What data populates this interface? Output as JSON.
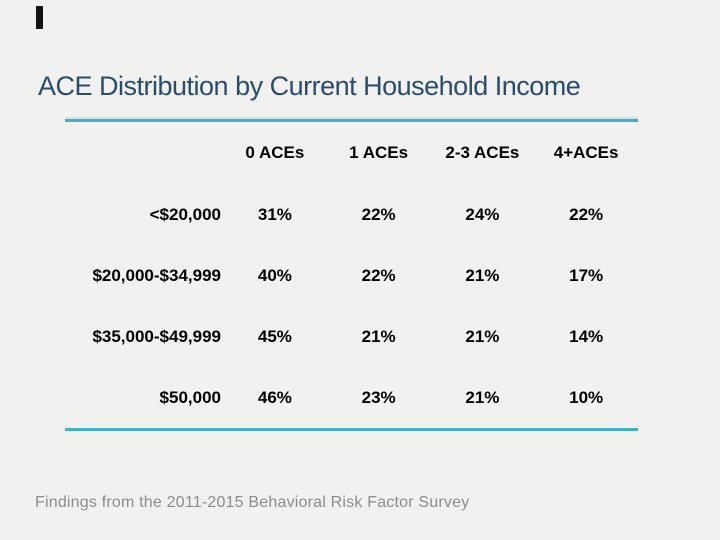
{
  "slide": {
    "title": "ACE Distribution by Current Household Income",
    "footer": "Findings from the 2011-2015 Behavioral Risk Factor Survey",
    "background_color": "#f1f1ef",
    "title_color": "#2a4d6e",
    "accent_line_color": "#43b1c4",
    "footer_color": "#8c8c8c"
  },
  "chart_data": {
    "type": "table",
    "title": "ACE Distribution by Current Household Income",
    "columns": [
      "0 ACEs",
      "1 ACEs",
      "2-3 ACEs",
      "4+ACEs"
    ],
    "rows": [
      {
        "label": "<$20,000",
        "values": [
          "31%",
          "22%",
          "24%",
          "22%"
        ]
      },
      {
        "label": "$20,000-$34,999",
        "values": [
          "40%",
          "22%",
          "21%",
          "17%"
        ]
      },
      {
        "label": "$35,000-$49,999",
        "values": [
          "45%",
          "21%",
          "21%",
          "14%"
        ]
      },
      {
        "label": "$50,000",
        "values": [
          "46%",
          "23%",
          "21%",
          "10%"
        ]
      }
    ],
    "annotations": [
      "Findings from the 2011-2015 Behavioral Risk Factor Survey"
    ]
  }
}
